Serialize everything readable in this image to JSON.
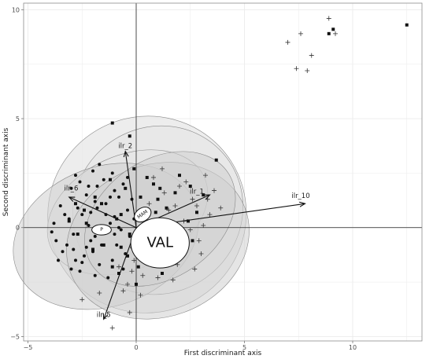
{
  "chart_data": {
    "type": "scatter",
    "xlabel": "First discriminant axis",
    "ylabel": "Second discriminant axis",
    "xlim": [
      -5.2,
      13.2
    ],
    "ylim": [
      -5.2,
      10.3
    ],
    "x_ticks": [
      -5,
      0,
      5,
      10
    ],
    "y_ticks": [
      -5,
      0,
      5,
      10
    ],
    "grid": true,
    "colors": {
      "grid": "#ebebeb",
      "zero_line": "#222222",
      "ellipse_outer": "#e6e6e6",
      "ellipse_inner": "#cfcfcf",
      "points": "#111111",
      "vectors": "#111111"
    },
    "ellipses": [
      {
        "cx": 0.5,
        "cy": 0.6,
        "rx": 4.6,
        "ry": 4.5,
        "angle": 30,
        "level": "outer"
      },
      {
        "cx": 1.0,
        "cy": 0.8,
        "rx": 4.0,
        "ry": 3.8,
        "angle": 40,
        "level": "outer"
      },
      {
        "cx": -0.4,
        "cy": 0.7,
        "rx": 3.9,
        "ry": 2.6,
        "angle": 25,
        "level": "outer"
      },
      {
        "cx": -1.4,
        "cy": -0.4,
        "rx": 4.4,
        "ry": 3.2,
        "angle": 20,
        "level": "inner"
      },
      {
        "cx": 1.0,
        "cy": -0.6,
        "rx": 4.3,
        "ry": 3.5,
        "angle": 20,
        "level": "inner"
      },
      {
        "cx": 1.1,
        "cy": 0.4,
        "rx": 3.8,
        "ry": 2.7,
        "angle": 35,
        "level": "inner"
      }
    ],
    "group_labels": [
      {
        "text": "VAL",
        "x": 1.1,
        "y": -0.7,
        "font_size": 18,
        "rx": 1.35,
        "ry": 1.15,
        "angle": 0
      },
      {
        "text": "MAM",
        "x": 0.3,
        "y": 0.6,
        "font_size": 6,
        "rx": 0.42,
        "ry": 0.3,
        "angle": -35
      },
      {
        "text": "P",
        "x": -1.6,
        "y": -0.1,
        "font_size": 6,
        "rx": 0.45,
        "ry": 0.24,
        "angle": 0
      }
    ],
    "vectors": [
      {
        "label": "ilr_2",
        "x": -0.5,
        "y": 3.5,
        "lx": -0.5,
        "ly": 3.55
      },
      {
        "label": "ilr_6",
        "x": -3.1,
        "y": 1.4,
        "lx": -3.0,
        "ly": 1.6
      },
      {
        "label": "ilr_1",
        "x": 3.4,
        "y": 1.5,
        "lx": 2.8,
        "ly": 1.45
      },
      {
        "label": "ilr_10",
        "x": 7.8,
        "y": 1.1,
        "lx": 7.6,
        "ly": 1.25
      },
      {
        "label": "ilr_5",
        "x": -1.5,
        "y": -4.2,
        "lx": -1.5,
        "ly": -4.2
      }
    ],
    "series": [
      {
        "marker": "square",
        "points": [
          [
            12.5,
            9.3
          ],
          [
            9.1,
            9.1
          ],
          [
            8.9,
            8.9
          ],
          [
            -1.1,
            4.8
          ],
          [
            -0.3,
            4.2
          ],
          [
            3.7,
            3.1
          ],
          [
            3.1,
            1.5
          ],
          [
            2.5,
            1.9
          ],
          [
            -2.4,
            0.8
          ],
          [
            2.4,
            0.3
          ],
          [
            1.3,
            -0.9
          ],
          [
            -0.7,
            0.6
          ],
          [
            0.6,
            0.2
          ],
          [
            0.5,
            2.3
          ],
          [
            -0.4,
            -1.3
          ],
          [
            2.2,
            -1.0
          ],
          [
            -0.3,
            -0.3
          ],
          [
            1.8,
            1.6
          ],
          [
            -1.9,
            1.4
          ],
          [
            -0.5,
            1.8
          ],
          [
            -2.3,
            0.2
          ],
          [
            1.4,
            0.9
          ],
          [
            -1.1,
            -1.8
          ],
          [
            0.2,
            1.4
          ],
          [
            -0.8,
            -2.1
          ],
          [
            1.9,
            -0.2
          ],
          [
            -2.8,
            1.1
          ],
          [
            0.8,
            2.0
          ],
          [
            -1.5,
            -0.8
          ],
          [
            2.8,
            0.7
          ],
          [
            0.1,
            -1.8
          ],
          [
            -1.2,
            2.2
          ],
          [
            1.0,
            1.3
          ],
          [
            -0.1,
            2.7
          ],
          [
            -3.1,
            0.3
          ],
          [
            2.0,
            2.4
          ],
          [
            -0.7,
            -0.9
          ],
          [
            0.7,
            -0.5
          ],
          [
            1.6,
            0.1
          ],
          [
            -2.0,
            -1.0
          ],
          [
            0.3,
            0.8
          ],
          [
            -1.6,
            1.1
          ],
          [
            1.2,
            -2.1
          ],
          [
            2.6,
            -0.6
          ],
          [
            -0.9,
            0.4
          ],
          [
            0.9,
            0.7
          ],
          [
            -2.7,
            -0.3
          ],
          [
            0.0,
            -2.6
          ],
          [
            -1.3,
            0.0
          ],
          [
            1.1,
            1.8
          ]
        ]
      },
      {
        "marker": "circle",
        "points": [
          [
            -2.8,
            2.4
          ],
          [
            -3.7,
            -0.6
          ],
          [
            -2.1,
            0.7
          ],
          [
            -1.0,
            0.5
          ],
          [
            -1.9,
            -0.4
          ],
          [
            -0.6,
            2.0
          ],
          [
            -2.5,
            -1.6
          ],
          [
            -1.4,
            1.1
          ],
          [
            -1.8,
            1.9
          ],
          [
            -0.3,
            -0.4
          ],
          [
            -3.1,
            0.4
          ],
          [
            -2.0,
            -1.1
          ],
          [
            -1.1,
            -1.5
          ],
          [
            -2.7,
            0.9
          ],
          [
            -0.8,
            1.4
          ],
          [
            -1.6,
            -0.8
          ],
          [
            -3.4,
            -1.1
          ],
          [
            -2.3,
            1.5
          ],
          [
            -0.5,
            -1.2
          ],
          [
            -1.2,
            0.2
          ],
          [
            -2.9,
            -0.3
          ],
          [
            -1.9,
            1.2
          ],
          [
            -3.8,
            0.2
          ],
          [
            -0.9,
            -0.8
          ],
          [
            -2.2,
            0.1
          ],
          [
            -1.5,
            2.2
          ],
          [
            -2.6,
            -2.0
          ],
          [
            -1.0,
            1.7
          ],
          [
            -3.2,
            -0.8
          ],
          [
            -0.4,
            0.8
          ],
          [
            -2.0,
            2.6
          ],
          [
            -1.7,
            -1.7
          ],
          [
            -2.5,
            0.6
          ],
          [
            -0.7,
            -0.1
          ],
          [
            -3.5,
            1.0
          ],
          [
            -1.3,
            -2.3
          ],
          [
            -2.1,
            -0.6
          ],
          [
            -0.2,
            1.3
          ],
          [
            -3.0,
            1.8
          ],
          [
            -1.8,
            0.9
          ],
          [
            -2.4,
            -1.3
          ],
          [
            -1.1,
            2.5
          ],
          [
            -3.9,
            -0.2
          ],
          [
            -0.6,
            -1.9
          ],
          [
            -2.8,
            -1.5
          ],
          [
            -1.4,
            0.6
          ],
          [
            -2.2,
            1.9
          ],
          [
            -0.8,
            0.0
          ],
          [
            -3.3,
            0.6
          ],
          [
            -1.6,
            -0.2
          ],
          [
            -0.2,
            -0.9
          ],
          [
            -2.6,
            2.1
          ],
          [
            -1.9,
            -2.2
          ],
          [
            -0.4,
            2.3
          ],
          [
            -3.6,
            -1.5
          ],
          [
            -1.2,
            1.4
          ],
          [
            -2.3,
            -0.9
          ],
          [
            -0.1,
            0.4
          ],
          [
            -1.7,
            2.9
          ],
          [
            -2.9,
            -1.0
          ],
          [
            -3.0,
            -1.9
          ],
          [
            -1.0,
            -0.3
          ]
        ]
      },
      {
        "marker": "plus",
        "points": [
          [
            8.9,
            9.6
          ],
          [
            7.6,
            8.9
          ],
          [
            7.0,
            8.5
          ],
          [
            8.1,
            7.9
          ],
          [
            7.4,
            7.3
          ],
          [
            7.9,
            7.2
          ],
          [
            9.2,
            8.9
          ],
          [
            -1.1,
            -4.6
          ],
          [
            -2.5,
            -3.3
          ],
          [
            -1.7,
            -3.0
          ],
          [
            -0.3,
            -3.9
          ],
          [
            1.0,
            -2.3
          ],
          [
            3.2,
            2.4
          ],
          [
            3.4,
            0.6
          ],
          [
            2.5,
            -0.1
          ],
          [
            1.5,
            0.8
          ],
          [
            3.0,
            -1.2
          ],
          [
            2.0,
            1.9
          ],
          [
            0.9,
            -1.3
          ],
          [
            1.7,
            -2.4
          ],
          [
            -0.6,
            -2.9
          ],
          [
            2.8,
            1.0
          ],
          [
            1.2,
            2.7
          ],
          [
            -0.1,
            -1.5
          ],
          [
            2.2,
            0.3
          ],
          [
            0.6,
            1.1
          ],
          [
            3.6,
            1.7
          ],
          [
            1.9,
            -1.7
          ],
          [
            0.3,
            -2.2
          ],
          [
            2.6,
            1.3
          ],
          [
            1.1,
            -0.2
          ],
          [
            -0.4,
            -2.6
          ],
          [
            2.9,
            -0.6
          ],
          [
            0.8,
            2.3
          ],
          [
            1.6,
            -1.1
          ],
          [
            3.9,
            0.9
          ],
          [
            0.1,
            -0.7
          ],
          [
            2.3,
            2.1
          ],
          [
            1.3,
            1.6
          ],
          [
            -0.8,
            -1.8
          ],
          [
            2.7,
            -1.9
          ],
          [
            0.4,
            0.4
          ],
          [
            3.1,
            0.1
          ],
          [
            1.8,
            1.0
          ],
          [
            0.2,
            -3.1
          ],
          [
            2.1,
            -0.8
          ],
          [
            1.4,
            0.0
          ],
          [
            -0.2,
            -2.0
          ],
          [
            3.3,
            1.3
          ],
          [
            0.7,
            -1.6
          ]
        ]
      }
    ]
  }
}
